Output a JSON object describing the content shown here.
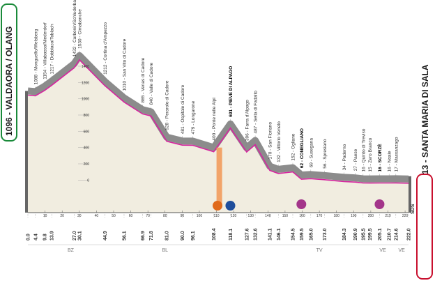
{
  "chart_data": {
    "type": "profile",
    "start": "1096 - VALDAORA / OLANG",
    "finish": "13 - SANTA MARIA DI SALA",
    "places": [
      {
        "label": null,
        "km": {
          "value": 0,
          "label": "0.0"
        }
      },
      {
        "label": "1088 - Monguelfo/Welsberg",
        "km": 4.4
      },
      {
        "label": "1154 - Villabassa/Niederdorf",
        "km": 9.8
      },
      {
        "label": "1217 - Dobbiaco/Toblach",
        "km": 13.9
      },
      {
        "label": "1432 - Carbonin/Schluderbach",
        "km": {
          "value": 27,
          "label": "27.0"
        }
      },
      {
        "label": "1530 - Cimabanche",
        "km": 30.1
      },
      {
        "label": "1212 - Cortina d'Ampezzo",
        "km": 44.9
      },
      {
        "label": "1010 - San Vito di Cadore",
        "km": 56.1
      },
      {
        "label": "865 - Venas di Cadore",
        "km": 66.9
      },
      {
        "label": "840 - Valle di Cadore",
        "km": 71.8
      },
      {
        "label": "528 - Perarolo di Cadore",
        "km": {
          "value": 81,
          "label": "81.0"
        }
      },
      {
        "label": "481 - Ospitale di Cadore",
        "km": {
          "value": 90,
          "label": "90.0"
        }
      },
      {
        "label": "479 - Longarone",
        "km": 96.1
      },
      {
        "label": "400 - Ponte nelle Alpi",
        "km": 108.4
      },
      {
        "label": "691 - PIEVE DI ALPAGO",
        "km": 118.1,
        "bold": true
      },
      {
        "label": "396 - Farra d'Alpago",
        "km": 127.6
      },
      {
        "label": "487 - Sella di Fadalto",
        "km": 132.6
      },
      {
        "label": "170 - San Floriano",
        "km": 141.1
      },
      {
        "label": "132 - Vittorio Veneto",
        "km": 146.1
      },
      {
        "label": "152 - Ogliano",
        "km": 154.5
      },
      {
        "label": "62 - CONEGLIANO",
        "km": 159.5,
        "bold": true
      },
      {
        "label": "69 - Susegana",
        "km": {
          "value": 165,
          "label": "165.0"
        }
      },
      {
        "label": "56 - Spresiano",
        "km": {
          "value": 173,
          "label": "173.0"
        }
      },
      {
        "label": "34 - Paderno",
        "km": 184.3
      },
      {
        "label": "27 - Paese",
        "km": 190.9
      },
      {
        "label": "16 - Quinto di Treviso",
        "km": 195.5
      },
      {
        "label": "15 - Zero Branco",
        "km": 199.5
      },
      {
        "label": "16 - SCORZÈ",
        "km": 205.1,
        "bold": true
      },
      {
        "label": "16 - Noale",
        "km": 210.7
      },
      {
        "label": "17 - Massanzago",
        "km": 214.6
      },
      {
        "label": null,
        "km": {
          "value": 222,
          "label": "222.0"
        }
      }
    ],
    "profile": {
      "km": [
        0,
        4.4,
        9.8,
        13.9,
        27,
        30.1,
        44.9,
        56.1,
        66.9,
        71.8,
        81,
        90,
        96.1,
        108.4,
        118.1,
        127.6,
        132.6,
        141.1,
        146.1,
        154.5,
        159.5,
        165,
        173,
        184.3,
        190.9,
        195.5,
        199.5,
        205.1,
        210.7,
        214.6,
        222
      ],
      "alt": [
        1096,
        1088,
        1154,
        1217,
        1432,
        1530,
        1212,
        1010,
        865,
        840,
        528,
        481,
        479,
        400,
        691,
        396,
        487,
        170,
        132,
        152,
        62,
        69,
        56,
        34,
        27,
        16,
        15,
        16,
        16,
        17,
        13
      ]
    },
    "xlim": [
      0,
      222
    ],
    "ylim": [
      -400,
      1700
    ],
    "xticks": [
      10,
      20,
      30,
      40,
      50,
      60,
      70,
      80,
      90,
      100,
      110,
      120,
      130,
      140,
      150,
      160,
      170,
      180,
      190,
      200,
      210,
      220
    ],
    "yticks": [
      0,
      200,
      400,
      600,
      800,
      1000,
      1200,
      1400
    ],
    "regions": [
      "BZ",
      "BL",
      "TV",
      "VE",
      "VE"
    ],
    "note": "SDS"
  }
}
